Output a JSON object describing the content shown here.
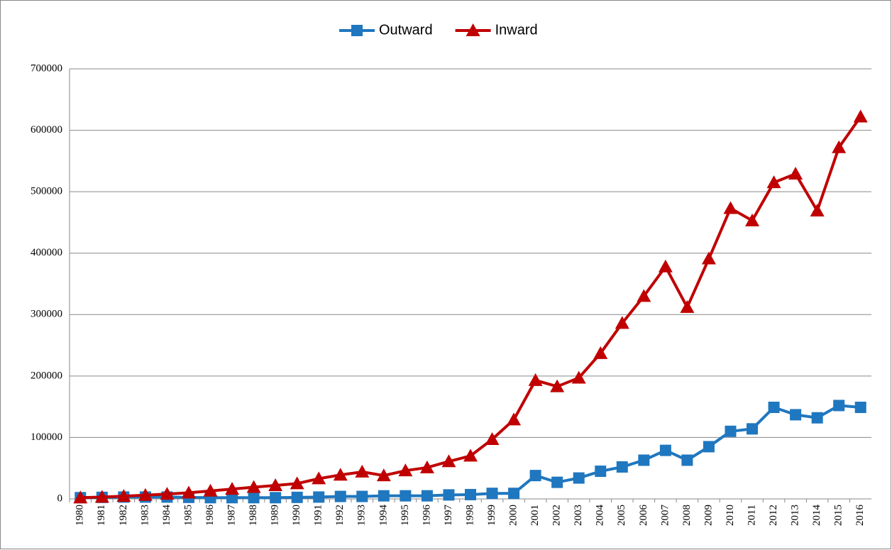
{
  "chart_data": {
    "type": "line",
    "categories": [
      "1980",
      "1981",
      "1982",
      "1983",
      "1984",
      "1985",
      "1986",
      "1987",
      "1988",
      "1989",
      "1990",
      "1991",
      "1992",
      "1993",
      "1994",
      "1995",
      "1996",
      "1997",
      "1998",
      "1999",
      "2000",
      "2001",
      "2002",
      "2003",
      "2004",
      "2005",
      "2006",
      "2007",
      "2008",
      "2009",
      "2010",
      "2011",
      "2012",
      "2013",
      "2014",
      "2015",
      "2016"
    ],
    "series": [
      {
        "name": "Outward",
        "color": "#1f77bf",
        "marker": "square",
        "values": [
          2000,
          2500,
          3000,
          3000,
          3000,
          2500,
          2000,
          2000,
          2000,
          2000,
          2500,
          3000,
          4000,
          4000,
          5000,
          5000,
          5000,
          6500,
          7000,
          9000,
          9000,
          38000,
          27000,
          34000,
          45000,
          52000,
          63000,
          79000,
          63000,
          85000,
          110000,
          114000,
          149000,
          137000,
          132000,
          152000,
          149000
        ]
      },
      {
        "name": "Inward",
        "color": "#c00000",
        "marker": "triangle",
        "values": [
          2000,
          3000,
          4500,
          6000,
          8000,
          10000,
          13000,
          16000,
          19000,
          22000,
          25000,
          33000,
          39000,
          44000,
          38000,
          46000,
          51000,
          61000,
          70000,
          97000,
          129000,
          193000,
          183000,
          197000,
          237000,
          286000,
          330000,
          378000,
          312000,
          391000,
          473000,
          453000,
          515000,
          529000,
          469000,
          572000,
          622000
        ]
      }
    ],
    "ylim": [
      0,
      700000
    ],
    "yticks": [
      0,
      100000,
      200000,
      300000,
      400000,
      500000,
      600000,
      700000
    ],
    "grid": true,
    "legend": "top"
  }
}
